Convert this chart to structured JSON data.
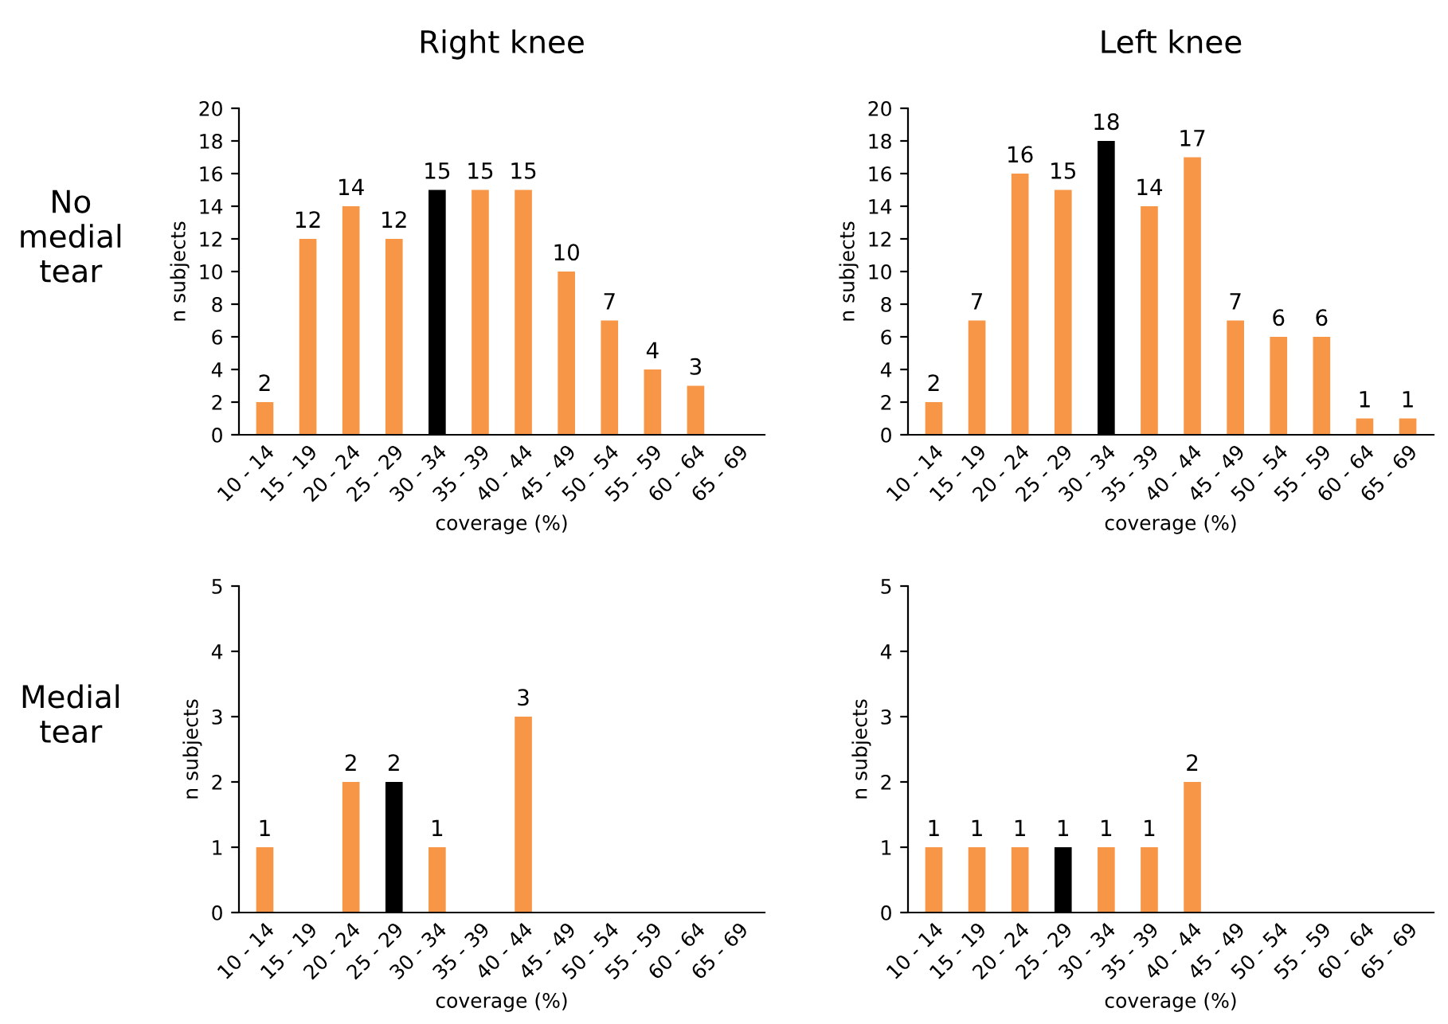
{
  "chart_data": [
    {
      "type": "bar",
      "title": "Right knee",
      "xlabel": "coverage (%)",
      "ylabel": "n subjects",
      "annotations": [
        "No medial tear"
      ],
      "categories": [
        "10 - 14",
        "15 - 19",
        "20 - 24",
        "25 - 29",
        "30 - 34",
        "35 - 39",
        "40 - 44",
        "45 - 49",
        "50 - 54",
        "55 - 59",
        "60 - 64",
        "65 - 69"
      ],
      "values": [
        2,
        12,
        14,
        12,
        15,
        15,
        15,
        10,
        7,
        4,
        3,
        0
      ],
      "value_labels": [
        "2",
        "12",
        "14",
        "12",
        "15",
        "15",
        "15",
        "10",
        "7",
        "4",
        "3",
        null
      ],
      "colors": [
        "#f79646",
        "#f79646",
        "#f79646",
        "#f79646",
        "#000000",
        "#f79646",
        "#f79646",
        "#f79646",
        "#f79646",
        "#f79646",
        "#f79646",
        "#f79646"
      ],
      "ylim": [
        0,
        20
      ],
      "yticks": [
        0,
        2,
        4,
        6,
        8,
        10,
        12,
        14,
        16,
        18,
        20
      ],
      "grid": false
    },
    {
      "type": "bar",
      "title": "Left knee",
      "xlabel": "coverage (%)",
      "ylabel": "n subjects",
      "categories": [
        "10 - 14",
        "15 - 19",
        "20 - 24",
        "25 - 29",
        "30 - 34",
        "35 - 39",
        "40 - 44",
        "45 - 49",
        "50 - 54",
        "55 - 59",
        "60 - 64",
        "65 - 69"
      ],
      "values": [
        2,
        7,
        16,
        15,
        18,
        14,
        17,
        7,
        6,
        6,
        1,
        1
      ],
      "value_labels": [
        "2",
        "7",
        "16",
        "15",
        "18",
        "14",
        "17",
        "7",
        "6",
        "6",
        "1",
        "1"
      ],
      "colors": [
        "#f79646",
        "#f79646",
        "#f79646",
        "#f79646",
        "#000000",
        "#f79646",
        "#f79646",
        "#f79646",
        "#f79646",
        "#f79646",
        "#f79646",
        "#f79646"
      ],
      "ylim": [
        0,
        20
      ],
      "yticks": [
        0,
        2,
        4,
        6,
        8,
        10,
        12,
        14,
        16,
        18,
        20
      ],
      "grid": false
    },
    {
      "type": "bar",
      "xlabel": "coverage (%)",
      "ylabel": "n subjects",
      "annotations": [
        "Medial tear"
      ],
      "categories": [
        "10 - 14",
        "15 - 19",
        "20 - 24",
        "25 - 29",
        "30 - 34",
        "35 - 39",
        "40 - 44",
        "45 - 49",
        "50 - 54",
        "55 - 59",
        "60 - 64",
        "65 - 69"
      ],
      "values": [
        1,
        0,
        2,
        2,
        1,
        0,
        3,
        0,
        0,
        0,
        0,
        0
      ],
      "value_labels": [
        "1",
        null,
        "2",
        "2",
        "1",
        null,
        "3",
        null,
        null,
        null,
        null,
        null
      ],
      "colors": [
        "#f79646",
        "#f79646",
        "#f79646",
        "#000000",
        "#f79646",
        "#f79646",
        "#f79646",
        "#f79646",
        "#f79646",
        "#f79646",
        "#f79646",
        "#f79646"
      ],
      "ylim": [
        0,
        5
      ],
      "yticks": [
        0,
        1,
        2,
        3,
        4,
        5
      ],
      "grid": false
    },
    {
      "type": "bar",
      "xlabel": "coverage (%)",
      "ylabel": "n subjects",
      "categories": [
        "10 - 14",
        "15 - 19",
        "20 - 24",
        "25 - 29",
        "30 - 34",
        "35 - 39",
        "40 - 44",
        "45 - 49",
        "50 - 54",
        "55 - 59",
        "60 - 64",
        "65 - 69"
      ],
      "values": [
        1,
        1,
        1,
        1,
        1,
        1,
        2,
        0,
        0,
        0,
        0,
        0
      ],
      "value_labels": [
        "1",
        "1",
        "1",
        "1",
        "1",
        "1",
        "2",
        null,
        null,
        null,
        null,
        null
      ],
      "colors": [
        "#f79646",
        "#f79646",
        "#f79646",
        "#000000",
        "#f79646",
        "#f79646",
        "#f79646",
        "#f79646",
        "#f79646",
        "#f79646",
        "#f79646",
        "#f79646"
      ],
      "ylim": [
        0,
        5
      ],
      "yticks": [
        0,
        1,
        2,
        3,
        4,
        5
      ],
      "grid": false
    }
  ]
}
